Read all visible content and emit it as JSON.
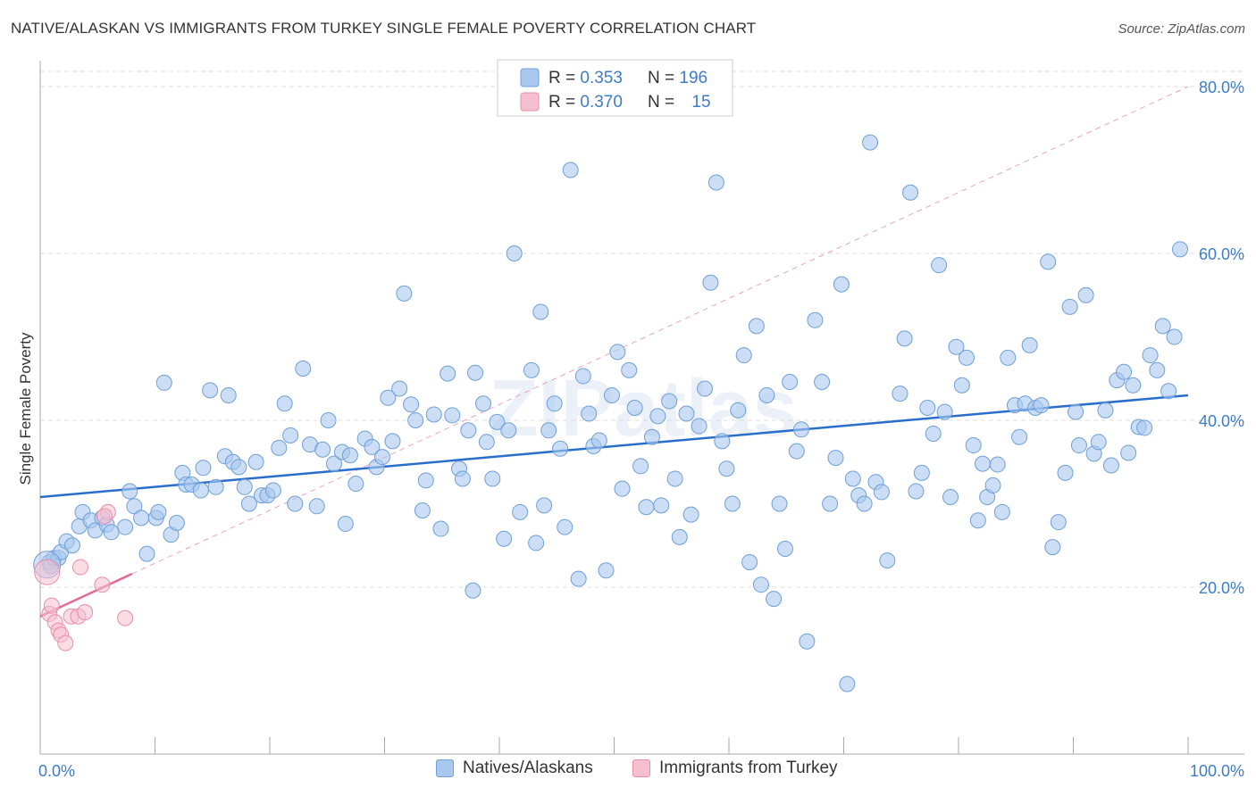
{
  "title": "NATIVE/ALASKAN VS IMMIGRANTS FROM TURKEY SINGLE FEMALE POVERTY CORRELATION CHART",
  "source": "Source: ZipAtlas.com",
  "watermark": "ZIPatlas",
  "colors": {
    "blue_fill": "#a9c8ef",
    "blue_stroke": "#6f9fd8",
    "blue_line": "#2a6ecb",
    "pink_fill": "#f6bfd0",
    "pink_stroke": "#e98daa",
    "pink_line": "#e36a93",
    "axis_text": "#3d7cc9",
    "grid": "#dddddd"
  },
  "legend_top": {
    "rows": [
      {
        "r_label": "R = ",
        "r_value": "0.353",
        "n_label": "N = ",
        "n_value": "196"
      },
      {
        "r_label": "R = ",
        "r_value": "0.370",
        "n_label": "N = ",
        "n_value": "15"
      }
    ]
  },
  "legend_bottom": {
    "items": [
      {
        "label": "Natives/Alaskans"
      },
      {
        "label": "Immigrants from Turkey"
      }
    ]
  },
  "chart_data": {
    "type": "scatter",
    "title": "NATIVE/ALASKAN VS IMMIGRANTS FROM TURKEY SINGLE FEMALE POVERTY CORRELATION CHART",
    "xlabel": "",
    "ylabel": "Single Female Poverty",
    "xlim": [
      0,
      100
    ],
    "ylim": [
      0,
      82
    ],
    "x_tick_labels": [
      "0.0%",
      "100.0%"
    ],
    "y_ticks": [
      20,
      40,
      60,
      80
    ],
    "y_tick_labels": [
      "20.0%",
      "40.0%",
      "60.0%",
      "80.0%"
    ],
    "grid": true,
    "series": [
      {
        "name": "Natives/Alaskans",
        "r": 0.353,
        "n": 196,
        "trend": {
          "x": [
            0,
            100
          ],
          "y": [
            30.8,
            43.0
          ]
        },
        "points": [
          [
            0.8,
            23
          ],
          [
            0.9,
            22.5
          ],
          [
            1.2,
            23.5
          ],
          [
            1.6,
            23.5
          ],
          [
            1.8,
            24.2
          ],
          [
            2.3,
            25.5
          ],
          [
            2.8,
            25
          ],
          [
            3.4,
            27.3
          ],
          [
            3.7,
            29
          ],
          [
            4.4,
            28
          ],
          [
            4.8,
            26.8
          ],
          [
            5.4,
            28.3
          ],
          [
            5.8,
            27.5
          ],
          [
            6.2,
            26.6
          ],
          [
            7.4,
            27.2
          ],
          [
            7.8,
            31.5
          ],
          [
            8.2,
            29.7
          ],
          [
            8.8,
            28.3
          ],
          [
            9.3,
            24
          ],
          [
            10.1,
            28.3
          ],
          [
            10.3,
            29
          ],
          [
            10.8,
            44.5
          ],
          [
            11.4,
            26.3
          ],
          [
            11.9,
            27.7
          ],
          [
            12.4,
            33.7
          ],
          [
            12.7,
            32.3
          ],
          [
            13.2,
            32.3
          ],
          [
            14,
            31.6
          ],
          [
            14.2,
            34.3
          ],
          [
            14.8,
            43.6
          ],
          [
            15.3,
            32
          ],
          [
            16.1,
            35.7
          ],
          [
            16.4,
            43
          ],
          [
            16.8,
            35
          ],
          [
            17.3,
            34.4
          ],
          [
            17.8,
            32
          ],
          [
            18.2,
            30
          ],
          [
            18.8,
            35
          ],
          [
            19.3,
            31
          ],
          [
            19.8,
            31
          ],
          [
            20.3,
            31.6
          ],
          [
            20.8,
            36.7
          ],
          [
            21.3,
            42
          ],
          [
            21.8,
            38.2
          ],
          [
            22.2,
            30
          ],
          [
            22.9,
            46.2
          ],
          [
            23.5,
            37.1
          ],
          [
            24.1,
            29.7
          ],
          [
            24.6,
            36.5
          ],
          [
            25.1,
            40
          ],
          [
            25.6,
            34.8
          ],
          [
            26.3,
            36.2
          ],
          [
            26.6,
            27.6
          ],
          [
            27,
            35.8
          ],
          [
            27.5,
            32.4
          ],
          [
            28.3,
            37.8
          ],
          [
            28.9,
            36.8
          ],
          [
            29.3,
            34.4
          ],
          [
            29.8,
            35.6
          ],
          [
            30.3,
            42.7
          ],
          [
            30.7,
            37.5
          ],
          [
            31.3,
            43.8
          ],
          [
            31.7,
            55.2
          ],
          [
            32.3,
            41.9
          ],
          [
            32.7,
            40
          ],
          [
            33.3,
            29.2
          ],
          [
            33.6,
            32.8
          ],
          [
            34.3,
            40.7
          ],
          [
            34.9,
            27
          ],
          [
            35.5,
            45.6
          ],
          [
            35.9,
            40.6
          ],
          [
            36.5,
            34.2
          ],
          [
            36.8,
            33
          ],
          [
            37.3,
            38.8
          ],
          [
            37.7,
            19.6
          ],
          [
            37.9,
            45.7
          ],
          [
            38.6,
            42
          ],
          [
            38.9,
            37.4
          ],
          [
            39.4,
            33
          ],
          [
            39.8,
            39.8
          ],
          [
            40.4,
            25.8
          ],
          [
            40.8,
            38.8
          ],
          [
            41.3,
            60
          ],
          [
            41.8,
            29
          ],
          [
            42.8,
            46
          ],
          [
            43.2,
            25.3
          ],
          [
            43.6,
            53
          ],
          [
            43.9,
            29.8
          ],
          [
            44.3,
            38.8
          ],
          [
            44.8,
            42
          ],
          [
            45.3,
            36.6
          ],
          [
            45.7,
            27.2
          ],
          [
            46.2,
            70
          ],
          [
            46.9,
            21
          ],
          [
            47.3,
            45.3
          ],
          [
            47.8,
            40.8
          ],
          [
            48.2,
            36.9
          ],
          [
            48.7,
            37.6
          ],
          [
            49.3,
            22
          ],
          [
            49.8,
            43
          ],
          [
            50.3,
            48.2
          ],
          [
            50.7,
            31.8
          ],
          [
            51.3,
            46
          ],
          [
            51.8,
            41.5
          ],
          [
            52.3,
            34.5
          ],
          [
            52.8,
            29.6
          ],
          [
            53.3,
            38
          ],
          [
            53.8,
            40.5
          ],
          [
            54.1,
            29.8
          ],
          [
            54.8,
            42.3
          ],
          [
            55.3,
            33
          ],
          [
            55.7,
            26
          ],
          [
            56.3,
            40.8
          ],
          [
            56.7,
            28.7
          ],
          [
            57.4,
            39.3
          ],
          [
            57.9,
            43.8
          ],
          [
            58.4,
            56.5
          ],
          [
            58.9,
            68.5
          ],
          [
            59.4,
            37.5
          ],
          [
            59.8,
            34.2
          ],
          [
            60.3,
            30
          ],
          [
            60.8,
            41.2
          ],
          [
            61.3,
            47.8
          ],
          [
            61.8,
            23
          ],
          [
            62.4,
            51.3
          ],
          [
            62.8,
            20.3
          ],
          [
            63.3,
            43
          ],
          [
            63.9,
            18.6
          ],
          [
            64.4,
            30
          ],
          [
            64.9,
            24.6
          ],
          [
            65.3,
            44.6
          ],
          [
            65.9,
            36.3
          ],
          [
            66.3,
            38.9
          ],
          [
            66.8,
            13.5
          ],
          [
            67.5,
            52
          ],
          [
            68.1,
            44.6
          ],
          [
            68.8,
            30
          ],
          [
            69.3,
            35.5
          ],
          [
            69.8,
            56.3
          ],
          [
            70.3,
            8.4
          ],
          [
            70.8,
            33
          ],
          [
            71.3,
            31
          ],
          [
            71.8,
            30
          ],
          [
            72.3,
            73.3
          ],
          [
            72.8,
            32.6
          ],
          [
            73.3,
            31.4
          ],
          [
            73.8,
            23.2
          ],
          [
            74.9,
            43.2
          ],
          [
            75.3,
            49.8
          ],
          [
            75.8,
            67.3
          ],
          [
            76.3,
            31.5
          ],
          [
            76.8,
            33.7
          ],
          [
            77.3,
            41.5
          ],
          [
            77.8,
            38.4
          ],
          [
            78.3,
            58.6
          ],
          [
            78.8,
            41
          ],
          [
            79.3,
            30.8
          ],
          [
            79.8,
            48.8
          ],
          [
            80.3,
            44.2
          ],
          [
            80.7,
            47.5
          ],
          [
            81.3,
            37
          ],
          [
            81.7,
            28
          ],
          [
            82.1,
            34.8
          ],
          [
            82.5,
            30.8
          ],
          [
            83,
            32.2
          ],
          [
            83.4,
            34.7
          ],
          [
            83.8,
            29
          ],
          [
            84.3,
            47.5
          ],
          [
            84.9,
            41.8
          ],
          [
            85.3,
            38
          ],
          [
            85.8,
            42
          ],
          [
            86.2,
            49
          ],
          [
            86.7,
            41.5
          ],
          [
            87.2,
            41.8
          ],
          [
            87.8,
            59
          ],
          [
            88.2,
            24.8
          ],
          [
            88.7,
            27.8
          ],
          [
            89.3,
            33.7
          ],
          [
            89.7,
            53.6
          ],
          [
            90.2,
            41
          ],
          [
            90.5,
            37
          ],
          [
            91.1,
            55
          ],
          [
            91.8,
            36
          ],
          [
            92.2,
            37.4
          ],
          [
            92.8,
            41.2
          ],
          [
            93.3,
            34.6
          ],
          [
            93.8,
            44.8
          ],
          [
            94.4,
            45.8
          ],
          [
            94.8,
            36.1
          ],
          [
            95.2,
            44.2
          ],
          [
            95.7,
            39.2
          ],
          [
            96.2,
            39.1
          ],
          [
            96.7,
            47.8
          ],
          [
            97.3,
            46
          ],
          [
            97.8,
            51.3
          ],
          [
            98.3,
            43.5
          ],
          [
            98.8,
            50
          ],
          [
            99.3,
            60.5
          ]
        ]
      },
      {
        "name": "Immigrants from Turkey",
        "r": 0.37,
        "n": 15,
        "trend": {
          "x": [
            0,
            8
          ],
          "y": [
            16.5,
            21.6
          ]
        },
        "trend_extension": {
          "x": [
            8,
            100
          ],
          "y": [
            21.6,
            80
          ]
        },
        "points": [
          [
            0.6,
            21.8
          ],
          [
            0.8,
            16.8
          ],
          [
            1,
            17.8
          ],
          [
            1.3,
            15.8
          ],
          [
            1.6,
            14.8
          ],
          [
            1.8,
            14.3
          ],
          [
            2.2,
            13.3
          ],
          [
            2.7,
            16.5
          ],
          [
            3.3,
            16.5
          ],
          [
            3.5,
            22.4
          ],
          [
            3.9,
            17
          ],
          [
            5.4,
            20.3
          ],
          [
            5.9,
            29
          ],
          [
            5.6,
            28.5
          ],
          [
            7.4,
            16.3
          ]
        ]
      }
    ]
  }
}
